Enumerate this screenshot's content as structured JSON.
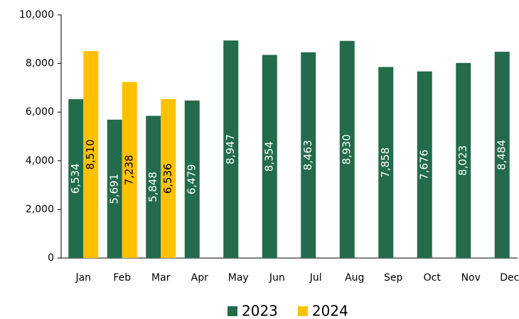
{
  "chart_data": {
    "type": "bar",
    "categories": [
      "Jan",
      "Feb",
      "Mar",
      "Apr",
      "May",
      "Jun",
      "Jul",
      "Aug",
      "Sep",
      "Oct",
      "Nov",
      "Dec"
    ],
    "series": [
      {
        "name": "2023",
        "color": "#236b4a",
        "values": [
          6534,
          5691,
          5848,
          6479,
          8947,
          8354,
          8463,
          8930,
          7858,
          7676,
          8023,
          8484
        ],
        "value_labels": [
          "6,534",
          "5,691",
          "5,848",
          "6,479",
          "8,947",
          "8,354",
          "8,463",
          "8,930",
          "7,858",
          "7,676",
          "8,023",
          "8,484"
        ]
      },
      {
        "name": "2024",
        "color": "#ffc000",
        "values": [
          8510,
          7238,
          6536,
          null,
          null,
          null,
          null,
          null,
          null,
          null,
          null,
          null
        ],
        "value_labels": [
          "8,510",
          "7,238",
          "6,536",
          null,
          null,
          null,
          null,
          null,
          null,
          null,
          null,
          null
        ]
      }
    ],
    "ylim": [
      0,
      10000
    ],
    "yticks": [
      0,
      {
        "value": 2000,
        "label": "2,000"
      },
      {
        "value": 4000,
        "label": "4,000"
      },
      {
        "value": 6000,
        "label": "6,000"
      },
      {
        "value": 8000,
        "label": "8,000"
      },
      {
        "value": 10000,
        "label": "10,000"
      }
    ],
    "legend": "bottom"
  }
}
